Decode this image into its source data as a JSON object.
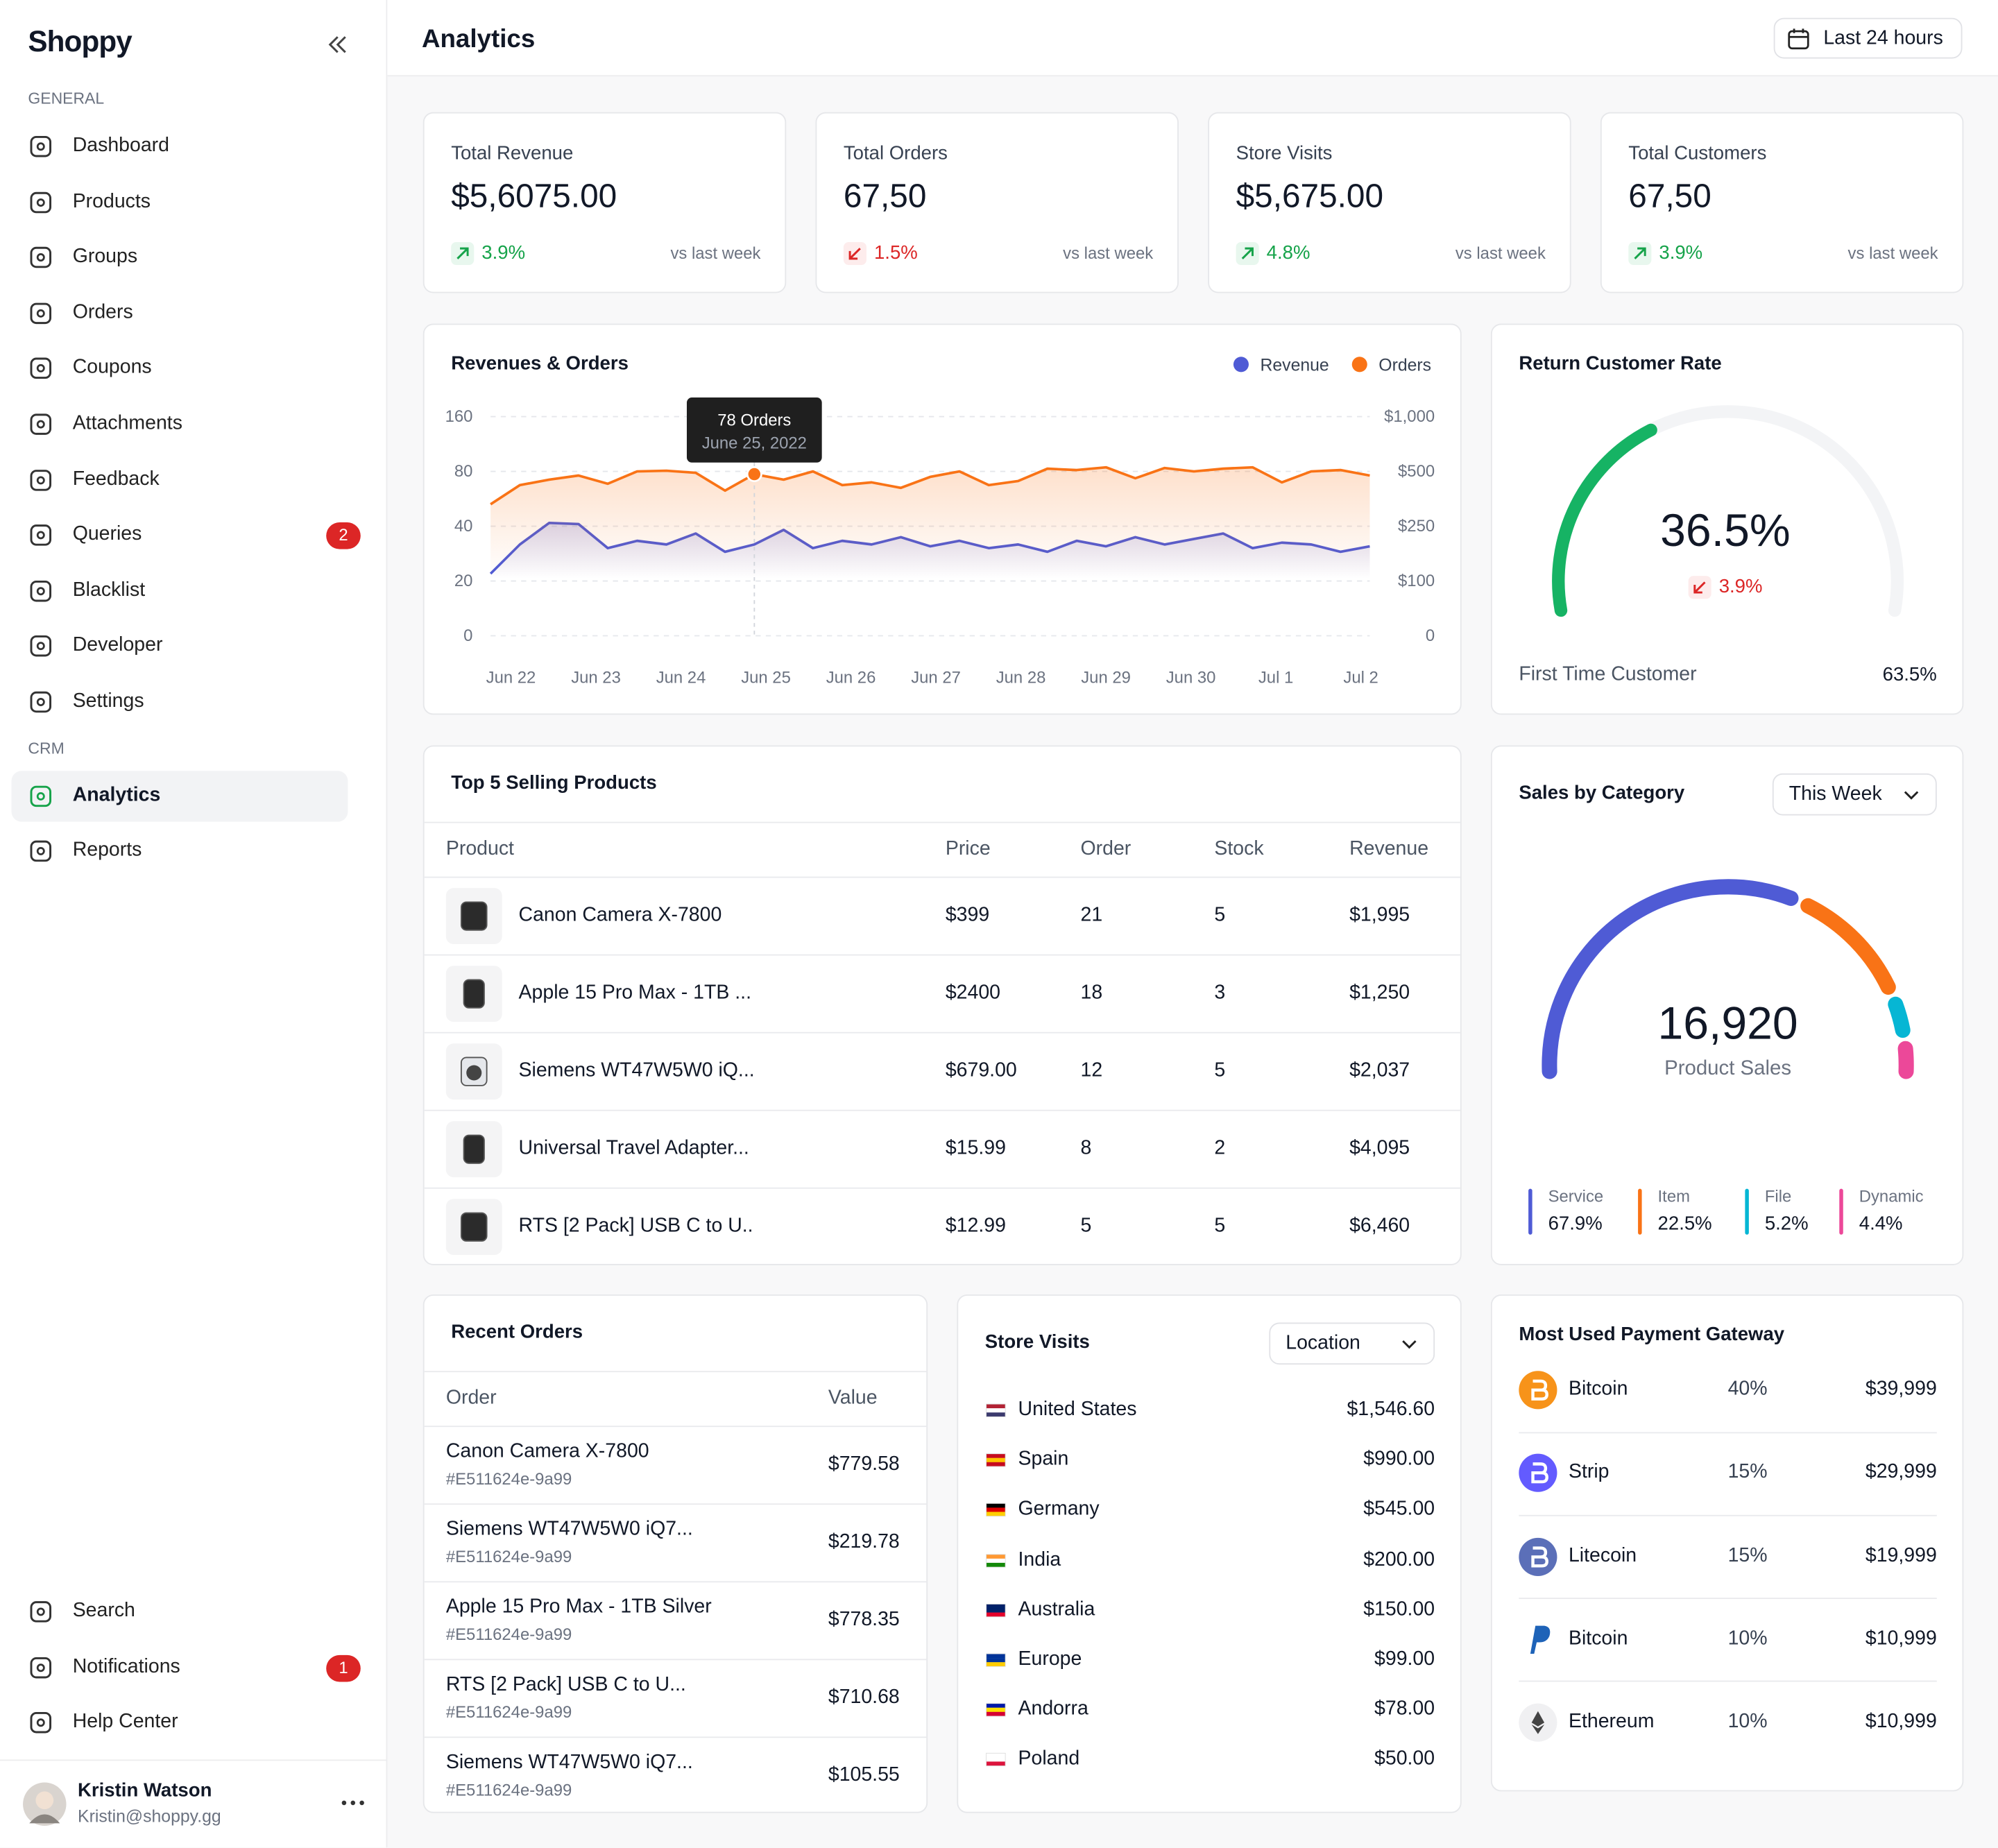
{
  "sidebar": {
    "brand": "Shoppy",
    "sections": [
      {
        "label": "GENERAL",
        "items": [
          {
            "label": "Dashboard"
          },
          {
            "label": "Products"
          },
          {
            "label": "Groups"
          },
          {
            "label": "Orders"
          },
          {
            "label": "Coupons"
          },
          {
            "label": "Attachments"
          },
          {
            "label": "Feedback"
          },
          {
            "label": "Queries",
            "badge": "2"
          },
          {
            "label": "Blacklist"
          },
          {
            "label": "Developer"
          },
          {
            "label": "Settings"
          }
        ]
      },
      {
        "label": "CRM",
        "items": [
          {
            "label": "Analytics",
            "active": true
          },
          {
            "label": "Reports"
          }
        ]
      }
    ],
    "bottom": [
      {
        "label": "Search"
      },
      {
        "label": "Notifications",
        "badge": "1"
      },
      {
        "label": "Help Center"
      }
    ],
    "user": {
      "name": "Kristin Watson",
      "email": "Kristin@shoppy.gg"
    }
  },
  "header": {
    "title": "Analytics",
    "range": "Last 24 hours"
  },
  "stats": [
    {
      "label": "Total Revenue",
      "value": "$5,6075.00",
      "change": "3.9%",
      "trend": "up",
      "compare": "vs last week"
    },
    {
      "label": "Total Orders",
      "value": "67,50",
      "change": "1.5%",
      "trend": "down",
      "compare": "vs last week"
    },
    {
      "label": "Store Visits",
      "value": "$5,675.00",
      "change": "4.8%",
      "trend": "up",
      "compare": "vs last week"
    },
    {
      "label": "Total Customers",
      "value": "67,50",
      "change": "3.9%",
      "trend": "up",
      "compare": "vs last week"
    }
  ],
  "revenue_chart": {
    "type": "line",
    "title": "Revenues & Orders",
    "categories": [
      "Jun 22",
      "Jun 23",
      "Jun 24",
      "Jun 25",
      "Jun 26",
      "Jun 27",
      "Jun 28",
      "Jun 29",
      "Jun 30",
      "Jul 1",
      "Jul 2"
    ],
    "ylim": [
      0,
      160
    ],
    "yticks": [
      0,
      20,
      40,
      80,
      160
    ],
    "y2lim": [
      0,
      1000
    ],
    "y2ticks": [
      0,
      {
        "value": 100,
        "label": "$100"
      },
      {
        "value": 250,
        "label": "$250"
      },
      {
        "value": 500,
        "label": "$500"
      },
      {
        "value": 1000,
        "label": "$1,000"
      }
    ],
    "series": [
      {
        "name": "Revenue",
        "color": "#4f5bd5",
        "axis": "y2",
        "values": [
          120,
          200,
          265,
          260,
          190,
          210,
          200,
          230,
          180,
          200,
          240,
          190,
          210,
          200,
          220,
          195,
          210,
          190,
          200,
          180,
          210,
          195,
          220,
          200,
          215,
          230,
          190,
          205,
          200,
          180,
          195
        ]
      },
      {
        "name": "Orders",
        "color": "#f97316",
        "values": [
          56,
          70,
          74,
          77,
          71,
          80,
          81,
          79,
          66,
          78,
          74,
          80,
          70,
          72,
          68,
          76,
          80,
          70,
          73,
          84,
          82,
          86,
          75,
          85,
          80,
          84,
          86,
          72,
          80,
          82,
          77
        ]
      }
    ],
    "tooltip": {
      "value": 78,
      "label": "78 Orders",
      "date": "June 25, 2022"
    },
    "grid": true
  },
  "return_rate": {
    "title": "Return Customer Rate",
    "value": 36.5,
    "value_label": "36.5%",
    "change": "3.9%",
    "trend": "down",
    "color": "#16b364",
    "footer_label": "First Time Customer",
    "footer_value": "63.5%"
  },
  "sales_by_category": {
    "title": "Sales by Category",
    "filter": "This Week",
    "total": "16,920",
    "total_label": "Product Sales",
    "segments": [
      {
        "name": "Service",
        "value": 67.9,
        "value_label": "67.9%",
        "color": "#4f5bd5"
      },
      {
        "name": "Item",
        "value": 22.5,
        "value_label": "22.5%",
        "color": "#f97316"
      },
      {
        "name": "File",
        "value": 5.2,
        "value_label": "5.2%",
        "color": "#06b6d4"
      },
      {
        "name": "Dynamic",
        "value": 4.4,
        "value_label": "4.4%",
        "color": "#ec4899"
      }
    ]
  },
  "top_products": {
    "title": "Top 5 Selling Products",
    "columns": [
      "Product",
      "Price",
      "Order",
      "Stock",
      "Revenue"
    ],
    "rows": [
      [
        "Canon Camera X-7800",
        "$399",
        "21",
        "5",
        "$1,995"
      ],
      [
        "Apple 15 Pro Max - 1TB ...",
        "$2400",
        "18",
        "3",
        "$1,250"
      ],
      [
        "Siemens WT47W5W0 iQ...",
        "$679.00",
        "12",
        "5",
        "$2,037"
      ],
      [
        "Universal Travel Adapter...",
        "$15.99",
        "8",
        "2",
        "$4,095"
      ],
      [
        "RTS [2 Pack] USB C to U..",
        "$12.99",
        "5",
        "5",
        "$6,460"
      ]
    ]
  },
  "recent_orders": {
    "title": "Recent Orders",
    "columns": [
      "Order",
      "Value"
    ],
    "rows": [
      {
        "name": "Canon Camera X-7800",
        "id": "#E511624e-9a99",
        "value": "$779.58"
      },
      {
        "name": "Siemens WT47W5W0 iQ7...",
        "id": "#E511624e-9a99",
        "value": "$219.78"
      },
      {
        "name": "Apple 15 Pro Max - 1TB Silver",
        "id": "#E511624e-9a99",
        "value": "$778.35"
      },
      {
        "name": "RTS [2 Pack] USB C to U...",
        "id": "#E511624e-9a99",
        "value": "$710.68"
      },
      {
        "name": "Siemens WT47W5W0 iQ7...",
        "id": "#E511624e-9a99",
        "value": "$105.55"
      }
    ]
  },
  "store_visits": {
    "title": "Store Visits",
    "filter": "Location",
    "rows": [
      {
        "country": "United States",
        "value": "$1,546.60"
      },
      {
        "country": "Spain",
        "value": "$990.00"
      },
      {
        "country": "Germany",
        "value": "$545.00"
      },
      {
        "country": "India",
        "value": "$200.00"
      },
      {
        "country": "Australia",
        "value": "$150.00"
      },
      {
        "country": "Europe",
        "value": "$99.00"
      },
      {
        "country": "Andorra",
        "value": "$78.00"
      },
      {
        "country": "Poland",
        "value": "$50.00"
      }
    ]
  },
  "payment_gateways": {
    "title": "Most Used Payment Gateway",
    "rows": [
      {
        "name": "Bitcoin",
        "share": "40%",
        "amount": "$39,999"
      },
      {
        "name": "Strip",
        "share": "15%",
        "amount": "$29,999"
      },
      {
        "name": "Litecoin",
        "share": "15%",
        "amount": "$19,999"
      },
      {
        "name": "Bitcoin",
        "share": "10%",
        "amount": "$10,999"
      },
      {
        "name": "Ethereum",
        "share": "10%",
        "amount": "$10,999"
      }
    ]
  }
}
